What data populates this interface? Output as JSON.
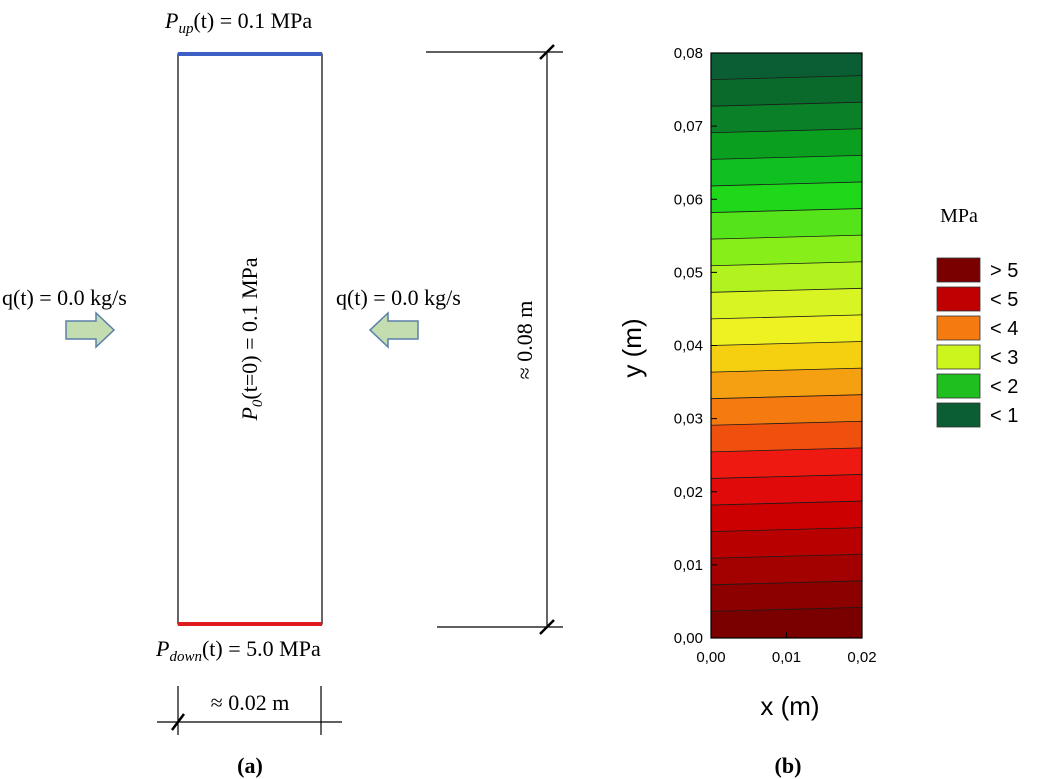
{
  "panel_a": {
    "caption": "(a)",
    "top_label": {
      "symbol": "P",
      "subscript": "up",
      "text": "(t) = 0.1 MPa"
    },
    "bottom_label": {
      "symbol": "P",
      "subscript": "down",
      "text": "(t) =  5.0 MPa"
    },
    "interior_label": {
      "symbol": "P",
      "subscript": "0",
      "text": "(t=0) = 0.1 MPa"
    },
    "left_flux": "q(t) = 0.0 kg/s",
    "right_flux": "q(t) = 0.0 kg/s",
    "height_dim": "≈ 0.08 m",
    "width_dim": "≈ 0.02 m",
    "colors": {
      "top_boundary": "#3b5fc4",
      "bottom_boundary": "#e01b1b",
      "arrow_fill": "#c3dcb0",
      "arrow_stroke": "#5a7fa8"
    }
  },
  "panel_b": {
    "caption": "(b)",
    "xlabel": "x   (m)",
    "ylabel": "y   (m)",
    "x_ticks": [
      "0,00",
      "0,01",
      "0,02"
    ],
    "y_ticks": [
      "0,00",
      "0,01",
      "0,02",
      "0,03",
      "0,04",
      "0,05",
      "0,06",
      "0,07",
      "0,08"
    ],
    "y_range": [
      0,
      0.08
    ],
    "x_range": [
      0,
      0.02
    ],
    "band_colors": [
      "#7a0000",
      "#8c0000",
      "#a30000",
      "#b80000",
      "#cc0000",
      "#e00a0a",
      "#ee1a12",
      "#f0500e",
      "#f57a10",
      "#f5a010",
      "#f5d010",
      "#eef222",
      "#d8f422",
      "#b2f21e",
      "#88ee1a",
      "#55e41a",
      "#1fd81a",
      "#10c020",
      "#0a9f1e",
      "#0a8028",
      "#0a6a2c",
      "#0b5e34"
    ],
    "legend": {
      "title": "MPa",
      "entries": [
        {
          "label": "> 5",
          "color": "#7a0000"
        },
        {
          "label": "< 5",
          "color": "#c00000"
        },
        {
          "label": "< 4",
          "color": "#f57a10"
        },
        {
          "label": "< 3",
          "color": "#ccf51e"
        },
        {
          "label": "< 2",
          "color": "#1fbf1f"
        },
        {
          "label": "< 1",
          "color": "#0b5e34"
        }
      ]
    }
  }
}
